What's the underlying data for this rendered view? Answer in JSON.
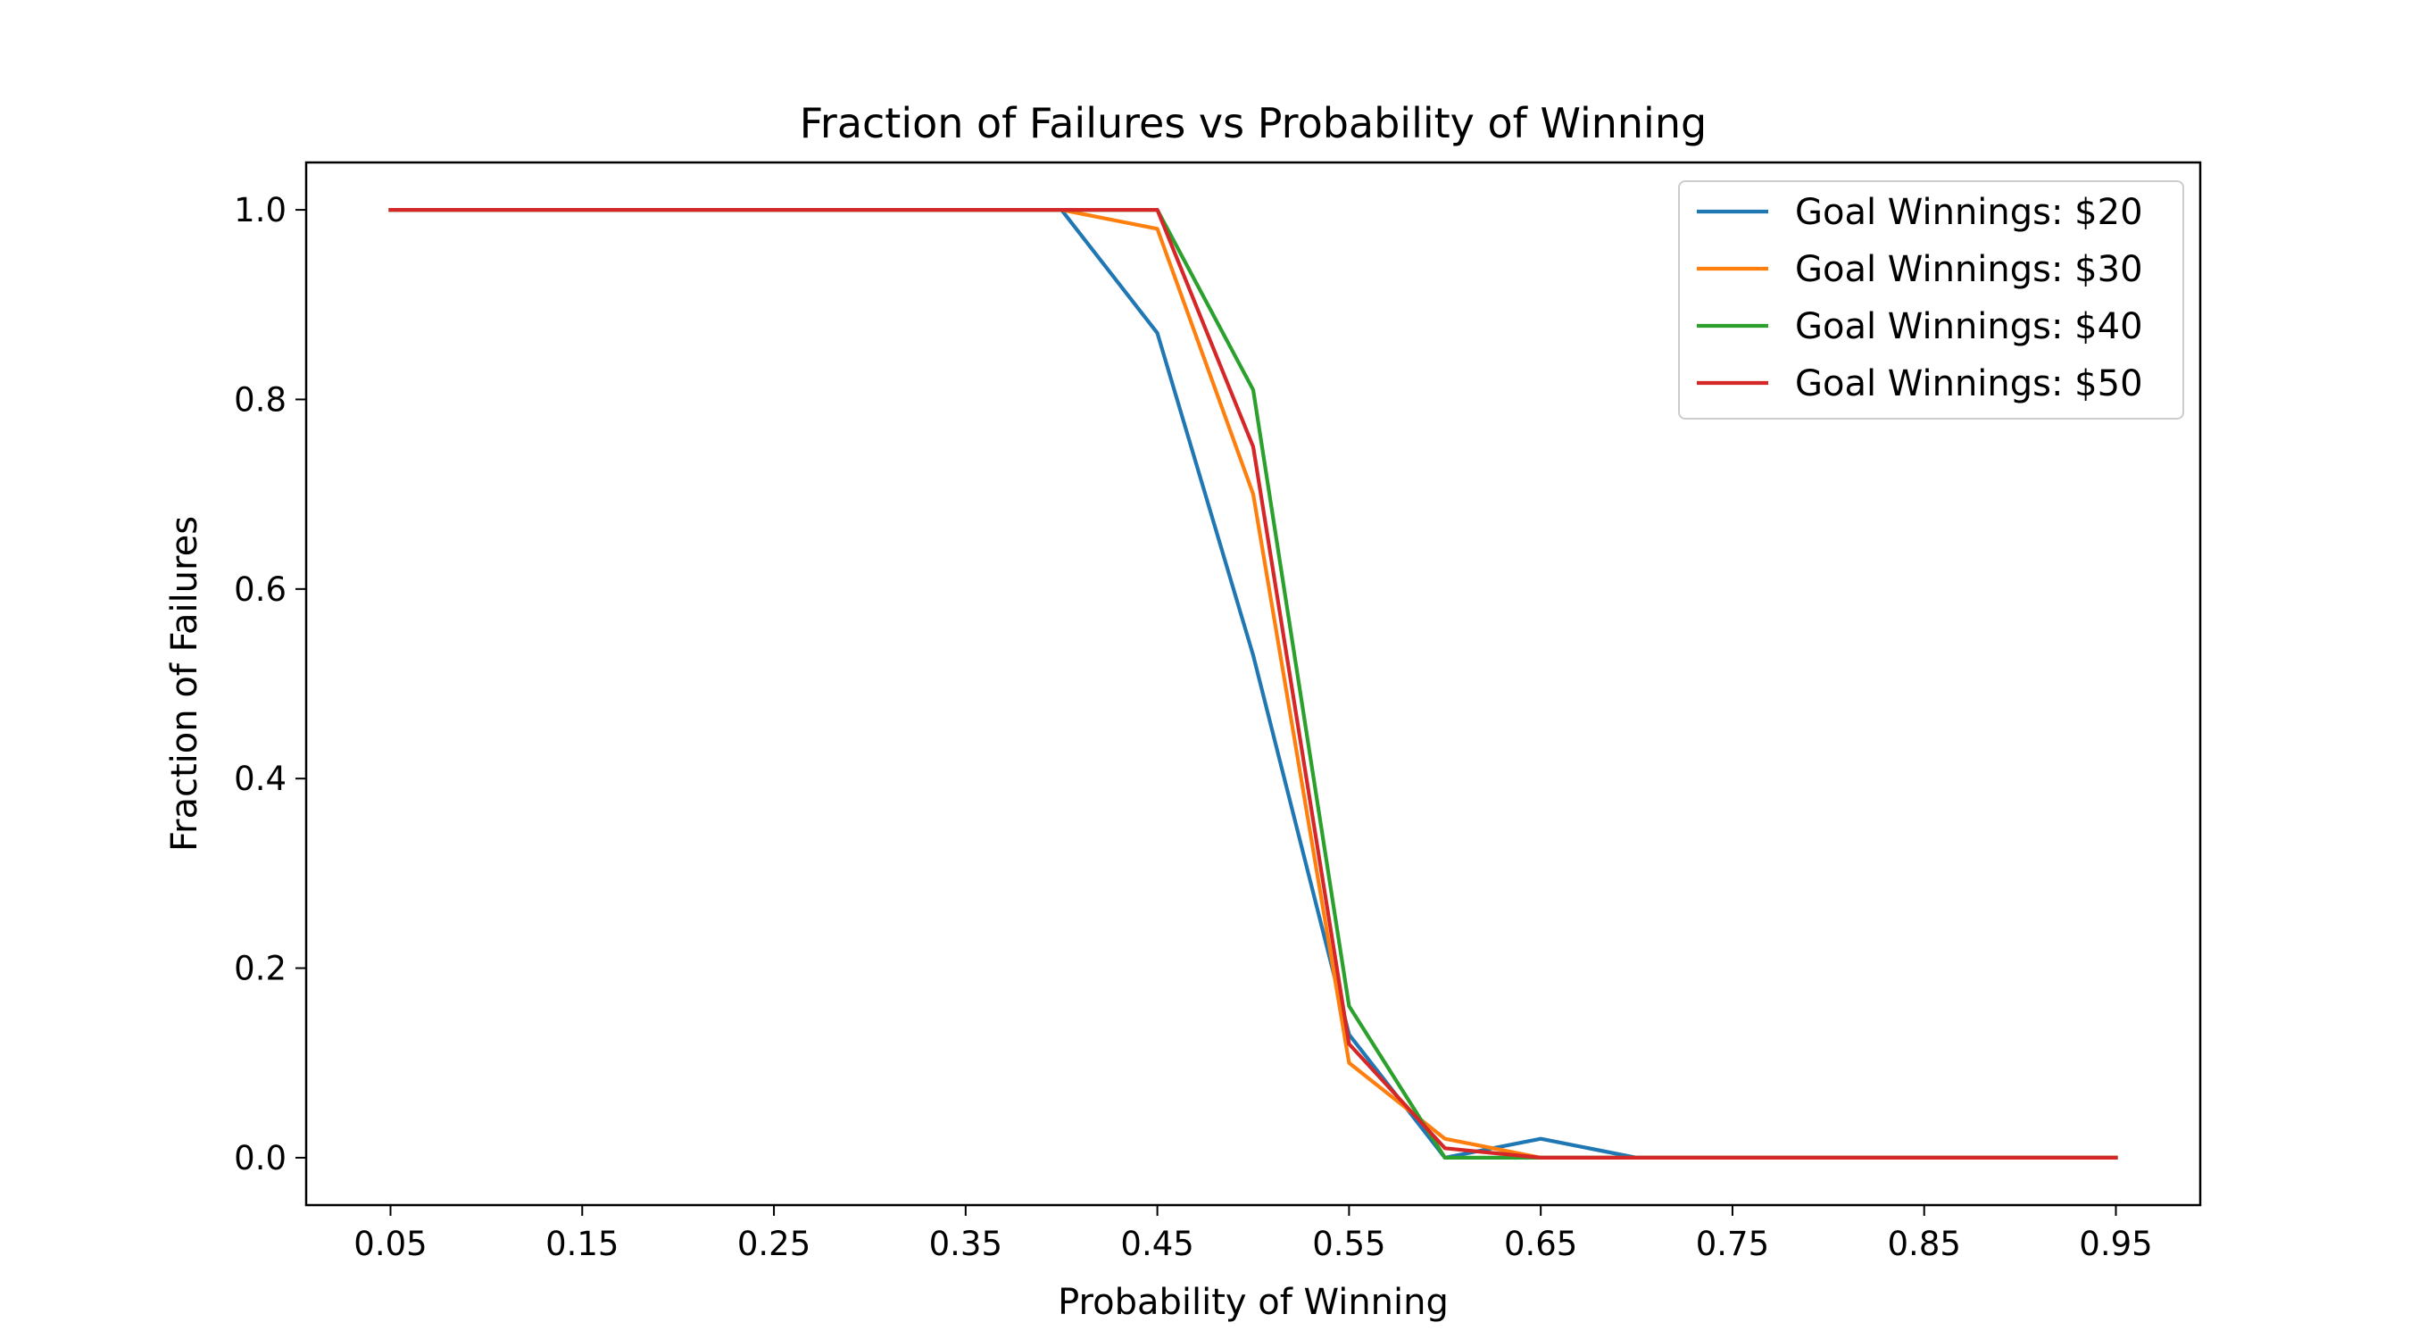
{
  "chart_data": {
    "type": "line",
    "title": "Fraction of Failures vs Probability of Winning",
    "xlabel": "Probability of Winning",
    "ylabel": "Fraction of Failures",
    "xlim": [
      0.006,
      0.994
    ],
    "ylim": [
      -0.05,
      1.05
    ],
    "xticks": [
      0.05,
      0.15,
      0.25,
      0.35,
      0.45,
      0.55,
      0.65,
      0.75,
      0.85,
      0.95
    ],
    "xtick_labels": [
      "0.05",
      "0.15",
      "0.25",
      "0.35",
      "0.45",
      "0.55",
      "0.65",
      "0.75",
      "0.85",
      "0.95"
    ],
    "yticks": [
      0.0,
      0.2,
      0.4,
      0.6,
      0.8,
      1.0
    ],
    "ytick_labels": [
      "0.0",
      "0.2",
      "0.4",
      "0.6",
      "0.8",
      "1.0"
    ],
    "grid": false,
    "legend_position": "top-right",
    "x": [
      0.05,
      0.1,
      0.15,
      0.2,
      0.25,
      0.3,
      0.35,
      0.4,
      0.45,
      0.5,
      0.55,
      0.6,
      0.65,
      0.7,
      0.75,
      0.8,
      0.85,
      0.9,
      0.95
    ],
    "series": [
      {
        "name": "Goal Winnings: $20",
        "color": "#1f77b4",
        "values": [
          1.0,
          1.0,
          1.0,
          1.0,
          1.0,
          1.0,
          1.0,
          1.0,
          0.87,
          0.53,
          0.13,
          0.0,
          0.02,
          0.0,
          0.0,
          0.0,
          0.0,
          0.0,
          0.0
        ]
      },
      {
        "name": "Goal Winnings: $30",
        "color": "#ff7f0e",
        "values": [
          1.0,
          1.0,
          1.0,
          1.0,
          1.0,
          1.0,
          1.0,
          1.0,
          0.98,
          0.7,
          0.1,
          0.02,
          0.0,
          0.0,
          0.0,
          0.0,
          0.0,
          0.0,
          0.0
        ]
      },
      {
        "name": "Goal Winnings: $40",
        "color": "#2ca02c",
        "values": [
          1.0,
          1.0,
          1.0,
          1.0,
          1.0,
          1.0,
          1.0,
          1.0,
          1.0,
          0.81,
          0.16,
          0.0,
          0.0,
          0.0,
          0.0,
          0.0,
          0.0,
          0.0,
          0.0
        ]
      },
      {
        "name": "Goal Winnings: $50",
        "color": "#d62728",
        "values": [
          1.0,
          1.0,
          1.0,
          1.0,
          1.0,
          1.0,
          1.0,
          1.0,
          1.0,
          0.75,
          0.12,
          0.01,
          0.0,
          0.0,
          0.0,
          0.0,
          0.0,
          0.0,
          0.0
        ]
      }
    ]
  }
}
